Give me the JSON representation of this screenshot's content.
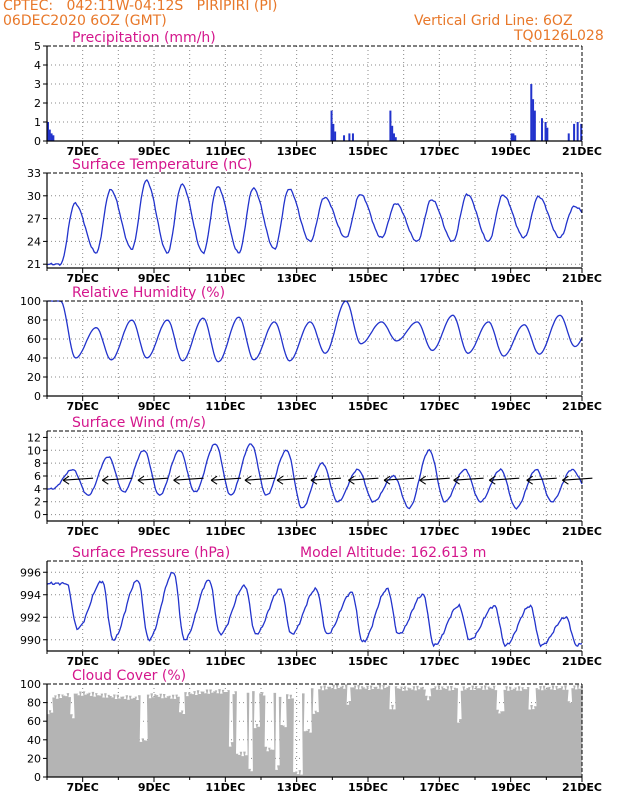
{
  "header": {
    "station_line": "CPTEC:   042:11W-04:12S   PIRIPIRI (PI)",
    "date_line": "06DEC2020 6OZ (GMT)",
    "grid_line": "Vertical Grid Line: 6OZ",
    "code": "TQ0126L028"
  },
  "colors": {
    "header": "#e8782a",
    "title": "#d4168c",
    "series": "#2233cc",
    "cloud": "#b4b4b4",
    "grid": "#888888"
  },
  "x_ticks": [
    "7DEC",
    "9DEC",
    "11DEC",
    "13DEC",
    "15DEC",
    "17DEC",
    "19DEC",
    "21DEC"
  ],
  "chart_data": [
    {
      "id": "precip",
      "type": "bar",
      "title": "Precipitation (mm/h)",
      "ylim": [
        0,
        5
      ],
      "yticks": [
        0,
        1,
        2,
        3,
        4,
        5
      ],
      "spikes": [
        [
          6.0,
          1.0
        ],
        [
          6.05,
          0.6
        ],
        [
          6.1,
          0.4
        ],
        [
          6.15,
          0.3
        ],
        [
          13.95,
          1.6
        ],
        [
          14.0,
          0.9
        ],
        [
          14.05,
          0.5
        ],
        [
          14.3,
          0.3
        ],
        [
          14.45,
          0.4
        ],
        [
          14.55,
          0.4
        ],
        [
          15.6,
          1.6
        ],
        [
          15.65,
          0.8
        ],
        [
          15.7,
          0.4
        ],
        [
          15.75,
          0.2
        ],
        [
          19.0,
          0.4
        ],
        [
          19.05,
          0.4
        ],
        [
          19.1,
          0.3
        ],
        [
          19.55,
          3.0
        ],
        [
          19.6,
          2.2
        ],
        [
          19.65,
          1.6
        ],
        [
          19.85,
          1.2
        ],
        [
          19.95,
          1.0
        ],
        [
          20.0,
          0.7
        ],
        [
          20.6,
          0.4
        ],
        [
          20.75,
          0.9
        ],
        [
          20.85,
          1.0
        ],
        [
          20.95,
          0.9
        ]
      ]
    },
    {
      "id": "temp",
      "type": "line",
      "title": "Surface Temperature (nC)",
      "ylim": [
        20.5,
        33
      ],
      "yticks": [
        21,
        24,
        27,
        30,
        33
      ],
      "maxes": [
        29,
        30.8,
        32,
        31.5,
        31.2,
        31,
        30.9,
        29.8,
        30.2,
        29,
        29.5,
        30.2,
        30.1,
        29.9,
        28.6,
        30.2
      ],
      "mins": [
        21,
        22.5,
        23,
        22.5,
        22.5,
        22.5,
        23,
        24,
        24.5,
        24.5,
        24,
        24,
        24,
        24.5,
        24.5,
        26
      ]
    },
    {
      "id": "rh",
      "type": "line",
      "title": "Relative Humidity (%)",
      "ylim": [
        0,
        100
      ],
      "yticks": [
        0,
        20,
        40,
        60,
        80,
        100
      ],
      "highs": [
        100,
        72,
        80,
        80,
        82,
        83,
        78,
        78,
        100,
        78,
        78,
        85,
        78,
        75,
        85,
        87
      ],
      "lows": [
        40,
        38,
        40,
        37,
        36,
        38,
        37,
        45,
        55,
        58,
        48,
        45,
        42,
        44,
        52,
        48
      ]
    },
    {
      "id": "wind",
      "type": "line",
      "title": "Surface Wind (m/s)",
      "ylim": [
        -1,
        13
      ],
      "yticks": [
        0,
        2,
        4,
        6,
        8,
        10,
        12
      ],
      "highs": [
        7,
        9,
        10,
        10,
        11,
        11,
        10,
        8,
        7,
        6,
        10,
        7,
        7,
        7,
        7,
        7
      ],
      "lows": [
        4,
        3,
        3.5,
        3,
        3.5,
        3,
        3,
        1,
        2,
        2,
        1,
        2,
        2,
        1,
        2,
        4
      ],
      "barb_x": [
        6.45,
        7.55,
        8.55,
        9.55,
        10.6,
        11.55,
        12.45,
        13.4,
        14.45,
        15.45,
        16.45,
        17.4,
        18.4,
        19.45,
        20.45
      ]
    },
    {
      "id": "press",
      "type": "line",
      "title": "Surface Pressure (hPa)",
      "subtitle": "Model Altitude: 162.613 m",
      "ylim": [
        989,
        997
      ],
      "yticks": [
        990,
        992,
        994,
        996
      ],
      "highs": [
        995,
        995.2,
        995.3,
        996,
        995.3,
        994.8,
        994.5,
        994.5,
        994.2,
        994.5,
        994,
        993,
        993,
        993,
        992,
        991.5
      ],
      "lows": [
        991,
        990,
        990,
        990,
        990.5,
        990.5,
        990.5,
        990.5,
        989.8,
        990.5,
        989.5,
        990,
        989.5,
        989.5,
        989.5,
        989.3
      ]
    },
    {
      "id": "cloud",
      "type": "bar",
      "title": "Cloud Cover (%)",
      "ylim": [
        0,
        100
      ],
      "yticks": [
        0,
        20,
        40,
        60,
        80,
        100
      ],
      "profile": [
        [
          6.0,
          85
        ],
        [
          6.5,
          88
        ],
        [
          7.0,
          90
        ],
        [
          7.5,
          88
        ],
        [
          8.0,
          86
        ],
        [
          8.5,
          85
        ],
        [
          9.0,
          88
        ],
        [
          9.5,
          86
        ],
        [
          10.0,
          90
        ],
        [
          10.5,
          92
        ],
        [
          11.0,
          92
        ],
        [
          11.5,
          90
        ],
        [
          12.0,
          90
        ],
        [
          12.5,
          88
        ],
        [
          13.0,
          85
        ],
        [
          13.5,
          95
        ],
        [
          14.0,
          97
        ],
        [
          14.5,
          97
        ],
        [
          15.0,
          96
        ],
        [
          15.5,
          97
        ],
        [
          16.0,
          95
        ],
        [
          16.5,
          96
        ],
        [
          17.0,
          96
        ],
        [
          17.5,
          95
        ],
        [
          18.0,
          96
        ],
        [
          18.5,
          96
        ],
        [
          19.0,
          95
        ],
        [
          19.5,
          95
        ],
        [
          20.0,
          96
        ],
        [
          20.5,
          96
        ],
        [
          21.0,
          97
        ]
      ],
      "dips": [
        [
          6.0,
          6.1,
          70
        ],
        [
          6.6,
          6.7,
          65
        ],
        [
          8.6,
          8.8,
          40
        ],
        [
          9.7,
          9.85,
          70
        ],
        [
          11.1,
          11.2,
          35
        ],
        [
          11.3,
          11.6,
          25
        ],
        [
          11.65,
          11.75,
          8
        ],
        [
          11.8,
          11.95,
          55
        ],
        [
          12.1,
          12.35,
          30
        ],
        [
          12.4,
          12.5,
          10
        ],
        [
          12.55,
          12.7,
          55
        ],
        [
          12.9,
          13.15,
          5
        ],
        [
          13.2,
          13.4,
          50
        ],
        [
          13.45,
          13.6,
          70
        ],
        [
          14.4,
          14.5,
          80
        ],
        [
          15.6,
          15.75,
          75
        ],
        [
          16.6,
          16.75,
          85
        ],
        [
          17.5,
          17.6,
          60
        ],
        [
          18.6,
          18.8,
          70
        ],
        [
          19.5,
          19.7,
          75
        ],
        [
          20.6,
          20.7,
          80
        ]
      ]
    }
  ]
}
